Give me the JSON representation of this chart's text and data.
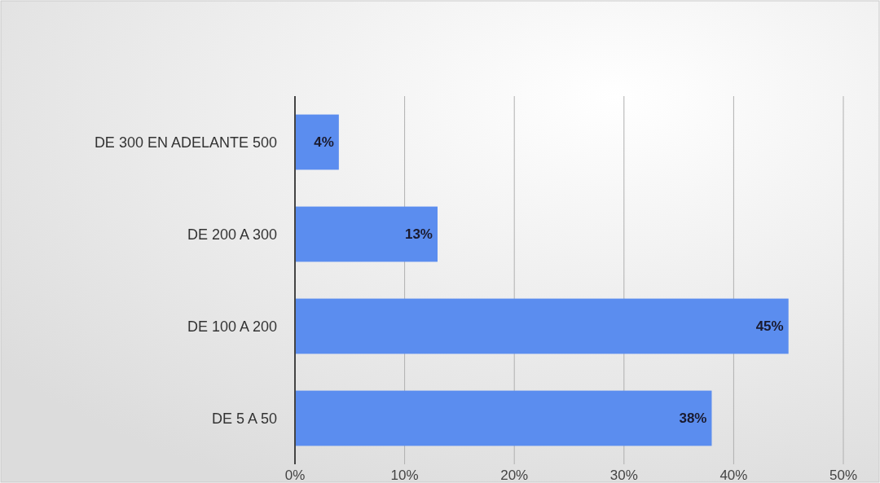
{
  "chart_data": {
    "type": "bar",
    "orientation": "horizontal",
    "categories": [
      "DE 300 EN ADELANTE 500",
      "DE 200 A 300",
      "DE 100 A 200",
      "DE 5 A 50"
    ],
    "values": [
      4,
      13,
      45,
      38
    ],
    "value_labels": [
      "4%",
      "13%",
      "45%",
      "38%"
    ],
    "color": "#5b8def",
    "xlim": [
      0,
      50
    ],
    "xticks": [
      {
        "value": 0,
        "label": "0%"
      },
      {
        "value": 10,
        "label": "10%"
      },
      {
        "value": 20,
        "label": "20%"
      },
      {
        "value": 30,
        "label": "30%"
      },
      {
        "value": 40,
        "label": "40%"
      },
      {
        "value": 50,
        "label": "50%"
      }
    ],
    "grid": "x"
  }
}
